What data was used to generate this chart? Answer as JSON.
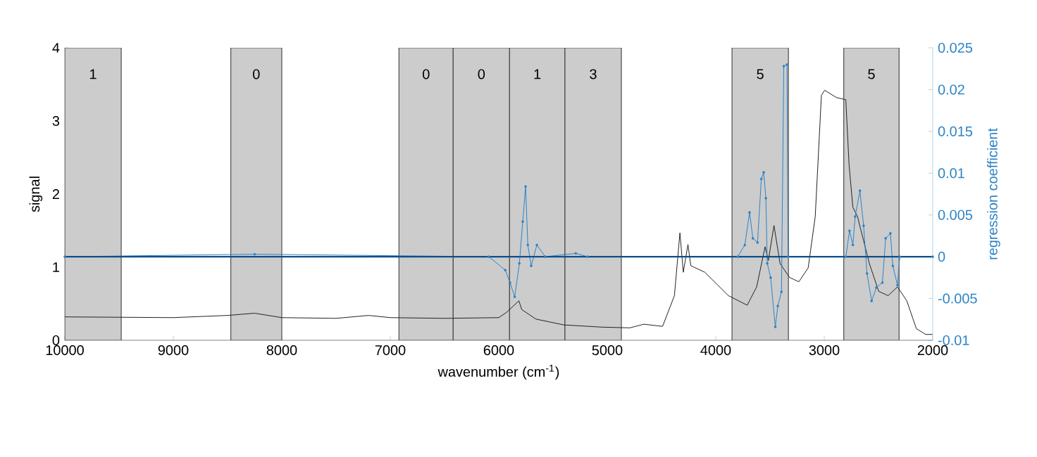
{
  "chart_data": {
    "type": "line",
    "xlabel": "wavenumber (cm$^{-1}$)",
    "ylabel": "signal",
    "y2label": "regression coefficient",
    "xlim": [
      10000,
      2000
    ],
    "xticks": [
      10000,
      9000,
      8000,
      7000,
      6000,
      5000,
      4000,
      3000,
      2000
    ],
    "ylim": [
      0,
      4
    ],
    "yticks": [
      0,
      1,
      2,
      3,
      4
    ],
    "y2lim": [
      -0.01,
      0.025
    ],
    "y2ticks": [
      -0.01,
      -0.005,
      0,
      0.005,
      0.01,
      0.015,
      0.02,
      0.025
    ],
    "series": [
      {
        "color": "#222222",
        "marker": "none",
        "x": [
          10000,
          9000,
          8500,
          8250,
          8000,
          7500,
          7200,
          7000,
          6500,
          6000,
          5930,
          5814,
          5788,
          5658,
          5399,
          5052,
          4792,
          4662,
          4490,
          4381,
          4330,
          4299,
          4256,
          4230,
          4100,
          3883,
          3710,
          3623,
          3545,
          3515,
          3463,
          3407,
          3320,
          3234,
          3148,
          3083,
          3026,
          2996,
          2888,
          2801,
          2771,
          2736,
          2693,
          2584,
          2498,
          2411,
          2325,
          2239,
          2151,
          2065,
          2000
        ],
        "values": [
          0.32,
          0.31,
          0.34,
          0.37,
          0.31,
          0.3,
          0.34,
          0.31,
          0.3,
          0.31,
          0.38,
          0.54,
          0.42,
          0.29,
          0.21,
          0.18,
          0.17,
          0.22,
          0.19,
          0.61,
          1.47,
          0.93,
          1.31,
          1.02,
          0.93,
          0.61,
          0.48,
          0.73,
          1.28,
          1.09,
          1.57,
          1.05,
          0.86,
          0.8,
          0.99,
          1.69,
          3.35,
          3.42,
          3.32,
          3.29,
          2.4,
          1.82,
          1.69,
          1.05,
          0.67,
          0.61,
          0.73,
          0.54,
          0.16,
          0.08,
          0.08
        ]
      },
      {
        "color": "#2b83c6",
        "marker": "circle",
        "axis": "y2",
        "x": [
          10000,
          8250,
          6091,
          5940,
          5896,
          5853,
          5810,
          5779,
          5753,
          5732,
          5701,
          5649,
          5571,
          5290,
          5182,
          3797,
          3732,
          3688,
          3658,
          3615,
          3580,
          3558,
          3538,
          3525,
          3494,
          3451,
          3428,
          3394,
          3373,
          3343,
          3334,
          2801,
          2767,
          2736,
          2715,
          2671,
          2637,
          2606,
          2563,
          2520,
          2464,
          2434,
          2390,
          2368,
          2325,
          2303,
          2000
        ],
        "values": [
          0,
          0.0003,
          0,
          -0.0016,
          -0.0031,
          -0.0048,
          -0.0008,
          0.0042,
          0.0084,
          0.0014,
          -0.0011,
          0.0014,
          0,
          0.0004,
          0,
          0,
          0.0014,
          0.0053,
          0.0022,
          0.0017,
          0.0093,
          0.0101,
          0.007,
          -0.0008,
          -0.0025,
          -0.0084,
          -0.0059,
          -0.0042,
          0.0228,
          0.023,
          0,
          0,
          0.0031,
          0.0014,
          0.0048,
          0.0079,
          0.0037,
          -0.002,
          -0.0053,
          -0.0037,
          -0.0031,
          0.0022,
          0.0028,
          -0.0011,
          -0.0034,
          0,
          0
        ]
      }
    ],
    "ref_lines": [
      {
        "axis": "y2",
        "value": 0,
        "color": "#0b4f8a"
      }
    ],
    "bands": [
      {
        "axis": "x",
        "from": 10000,
        "to": 9480,
        "label": "1",
        "color": "#cccccc"
      },
      {
        "axis": "x",
        "from": 8470,
        "to": 8000,
        "label": "0",
        "color": "#cccccc"
      },
      {
        "axis": "x",
        "from": 6920,
        "to": 6420,
        "label": "0",
        "color": "#cccccc"
      },
      {
        "axis": "x",
        "from": 6420,
        "to": 5900,
        "label": "0",
        "color": "#cccccc"
      },
      {
        "axis": "x",
        "from": 5900,
        "to": 5390,
        "label": "1",
        "color": "#cccccc"
      },
      {
        "axis": "x",
        "from": 5390,
        "to": 4870,
        "label": "3",
        "color": "#cccccc"
      },
      {
        "axis": "x",
        "from": 3850,
        "to": 3330,
        "label": "5",
        "color": "#cccccc"
      },
      {
        "axis": "x",
        "from": 2820,
        "to": 2310,
        "label": "5",
        "color": "#cccccc"
      }
    ]
  }
}
